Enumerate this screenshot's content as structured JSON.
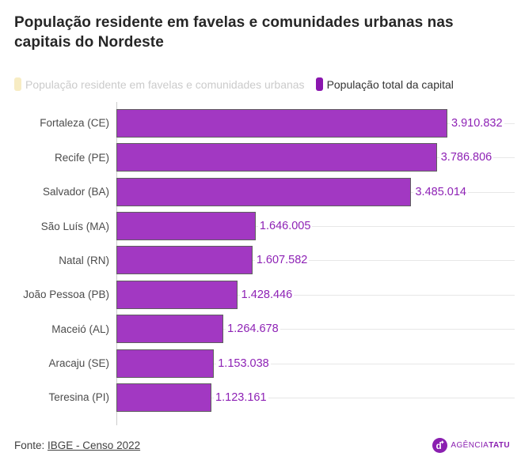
{
  "title": "População residente em favelas e comunidades urbanas nas capitais do Nordeste",
  "legend": {
    "items": [
      {
        "label": "População residente em favelas e comunidades urbanas",
        "swatch_color": "#f7ecc3",
        "active": false
      },
      {
        "label": "População total da capital",
        "swatch_color": "#8a16ae",
        "active": true
      }
    ]
  },
  "chart_data": {
    "type": "bar",
    "orientation": "horizontal",
    "title": "População residente em favelas e comunidades urbanas nas capitais do Nordeste",
    "categories": [
      "Fortaleza (CE)",
      "Recife (PE)",
      "Salvador (BA)",
      "São Luís (MA)",
      "Natal (RN)",
      "João Pessoa (PB)",
      "Maceió (AL)",
      "Aracaju (SE)",
      "Teresina (PI)"
    ],
    "series": [
      {
        "name": "População total da capital",
        "color": "#a238c2",
        "values": [
          3910832,
          3786806,
          3485014,
          1646005,
          1607582,
          1428446,
          1264678,
          1153038,
          1123161
        ]
      }
    ],
    "value_labels": [
      "3.910.832",
      "3.786.806",
      "3.485.014",
      "1.646.005",
      "1.607.582",
      "1.428.446",
      "1.264.678",
      "1.153.038",
      "1.123.161"
    ],
    "xlim": [
      0,
      3910832
    ],
    "grid": "row-guides",
    "legend_position": "top"
  },
  "footer": {
    "source_prefix": "Fonte: ",
    "source_link": "IBGE - Censo 2022",
    "logo_text_regular": "AGÊNCIA",
    "logo_text_bold": "TATU"
  },
  "colors": {
    "bar_fill": "#a238c2",
    "bar_stroke": "#5f5f5f",
    "value_label": "#8e22b5",
    "logo_purple": "#8a1fb0",
    "inactive_legend_text": "#cbcbcb"
  }
}
